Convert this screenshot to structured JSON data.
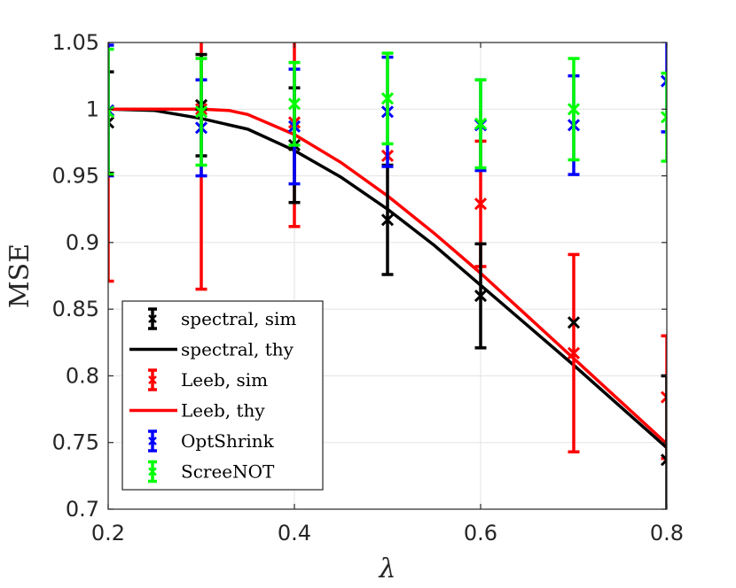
{
  "chart_data": {
    "type": "line",
    "xlabel": "λ",
    "ylabel": "MSE",
    "xlim": [
      0.2,
      0.8
    ],
    "ylim": [
      0.7,
      1.05
    ],
    "xticks": [
      0.2,
      0.4,
      0.6,
      0.8
    ],
    "xtick_labels": [
      "0.2",
      "0.4",
      "0.6",
      "0.8"
    ],
    "yticks": [
      0.7,
      0.75,
      0.8,
      0.85,
      0.9,
      0.95,
      1,
      1.05
    ],
    "ytick_labels": [
      "0.7",
      "0.75",
      "0.8",
      "0.85",
      "0.9",
      "0.95",
      "1",
      "1.05"
    ],
    "grid": true,
    "legend_position": "bottom-left",
    "series": [
      {
        "name": "spectral, sim",
        "kind": "errorbar",
        "color": "#000000",
        "x": [
          0.2,
          0.3,
          0.4,
          0.5,
          0.6,
          0.7,
          0.8
        ],
        "y": [
          0.99,
          1.003,
          0.973,
          0.917,
          0.86,
          0.84,
          0.737
        ],
        "err": [
          0.038,
          0.038,
          0.043,
          0.041,
          0.039,
          0.0,
          0.063
        ]
      },
      {
        "name": "spectral, thy",
        "kind": "line",
        "color": "#000000",
        "x": [
          0.2,
          0.25,
          0.3,
          0.35,
          0.4,
          0.45,
          0.5,
          0.55,
          0.6,
          0.65,
          0.7,
          0.75,
          0.8
        ],
        "y": [
          1.0,
          0.999,
          0.993,
          0.985,
          0.969,
          0.949,
          0.925,
          0.898,
          0.868,
          0.838,
          0.808,
          0.777,
          0.746
        ]
      },
      {
        "name": "Leeb, sim",
        "kind": "errorbar",
        "color": "#ff0000",
        "x": [
          0.2,
          0.3,
          0.4,
          0.5,
          0.6,
          0.7,
          0.8
        ],
        "y": [
          0.998,
          1.0,
          0.99,
          0.965,
          0.929,
          0.817,
          0.784
        ],
        "err": [
          0.127,
          0.135,
          0.078,
          0.0,
          0.047,
          0.074,
          0.046
        ]
      },
      {
        "name": "Leeb, thy",
        "kind": "line",
        "color": "#ff0000",
        "x": [
          0.2,
          0.25,
          0.3,
          0.33,
          0.35,
          0.4,
          0.45,
          0.5,
          0.55,
          0.6,
          0.65,
          0.7,
          0.75,
          0.8
        ],
        "y": [
          1.0,
          1.0,
          1.0,
          0.999,
          0.996,
          0.981,
          0.96,
          0.935,
          0.907,
          0.877,
          0.845,
          0.813,
          0.781,
          0.749
        ]
      },
      {
        "name": "OptShrink",
        "kind": "errorbar",
        "color": "#0000ff",
        "x": [
          0.2,
          0.3,
          0.4,
          0.5,
          0.6,
          0.7,
          0.8
        ],
        "y": [
          0.999,
          0.986,
          0.987,
          0.998,
          0.988,
          0.988,
          1.021
        ],
        "err": [
          0.049,
          0.036,
          0.043,
          0.041,
          0.034,
          0.037,
          0.038
        ]
      },
      {
        "name": "ScreeNOT",
        "kind": "errorbar",
        "color": "#00ff00",
        "x": [
          0.2,
          0.3,
          0.4,
          0.5,
          0.6,
          0.7,
          0.8
        ],
        "y": [
          0.998,
          0.998,
          1.004,
          1.008,
          0.989,
          1.0,
          0.994
        ],
        "err": [
          0.047,
          0.04,
          0.031,
          0.034,
          0.033,
          0.038,
          0.033
        ]
      }
    ]
  }
}
